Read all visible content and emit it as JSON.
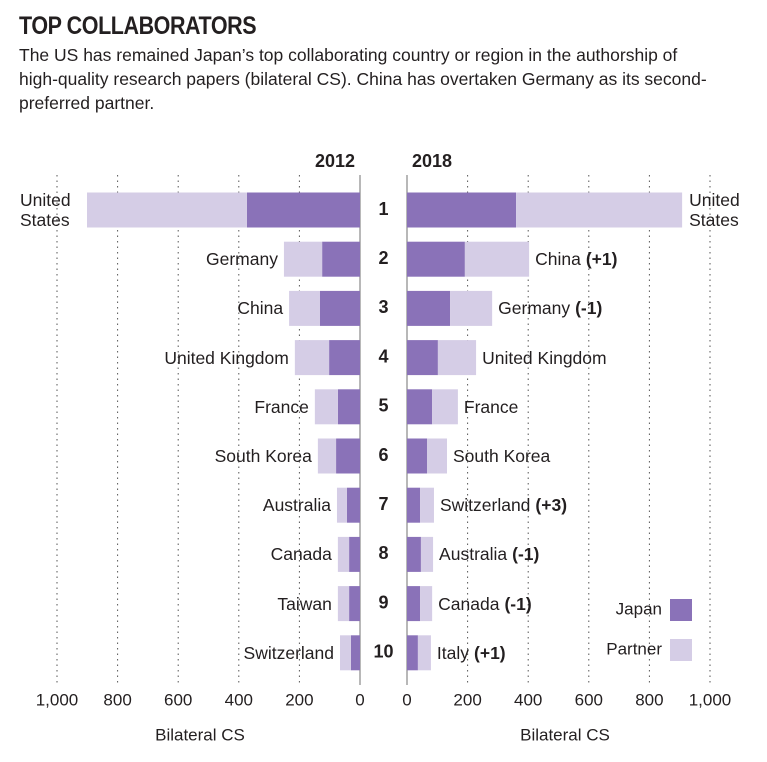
{
  "header": {
    "title": "TOP COLLABORATORS",
    "subtitle": "The US has remained Japan’s top collaborating country or region in the authorship of high-quality research papers (bilateral CS). China has overtaken Germany as its second-preferred partner."
  },
  "ranks": [
    1,
    2,
    3,
    4,
    5,
    6,
    7,
    8,
    9,
    10
  ],
  "chart_data": [
    {
      "type": "bar",
      "orientation": "horizontal",
      "direction": "leftward",
      "stacked": true,
      "title": "2012",
      "xlabel": "Bilateral CS",
      "categories": [
        "United States",
        "Germany",
        "China",
        "United Kingdom",
        "France",
        "South Korea",
        "Australia",
        "Canada",
        "Taiwan",
        "Switzerland"
      ],
      "series": [
        {
          "name": "Japan",
          "color": "#8a72b8",
          "values": [
            373,
            125,
            132,
            102,
            73,
            79,
            43,
            36,
            36,
            30
          ]
        },
        {
          "name": "Partner",
          "color": "#d5cde6",
          "values": [
            528,
            126,
            102,
            113,
            76,
            60,
            33,
            37,
            37,
            36
          ]
        }
      ],
      "xlim": [
        0,
        1000
      ],
      "xticks": [
        0,
        200,
        400,
        600,
        800,
        {
          "value": 1000,
          "label": "1,000"
        }
      ],
      "grid": true
    },
    {
      "type": "bar",
      "orientation": "horizontal",
      "direction": "rightward",
      "stacked": true,
      "title": "2018",
      "xlabel": "Bilateral CS",
      "categories": [
        "United States",
        "China",
        "Germany",
        "United Kingdom",
        "France",
        "South Korea",
        "Switzerland",
        "Australia",
        "Canada",
        "Italy"
      ],
      "changes": [
        null,
        "(+1)",
        "(-1)",
        null,
        null,
        null,
        "(+3)",
        "(-1)",
        "(-1)",
        "(+1)"
      ],
      "series": [
        {
          "name": "Japan",
          "color": "#8a72b8",
          "values": [
            360,
            191,
            142,
            102,
            83,
            66,
            43,
            46,
            43,
            36
          ]
        },
        {
          "name": "Partner",
          "color": "#d5cde6",
          "values": [
            548,
            212,
            139,
            126,
            85,
            66,
            46,
            40,
            40,
            43
          ]
        }
      ],
      "xlim": [
        0,
        1000
      ],
      "xticks": [
        0,
        200,
        400,
        600,
        800,
        {
          "value": 1000,
          "label": "1,000"
        }
      ],
      "grid": true,
      "legend": "bottom-right"
    }
  ]
}
